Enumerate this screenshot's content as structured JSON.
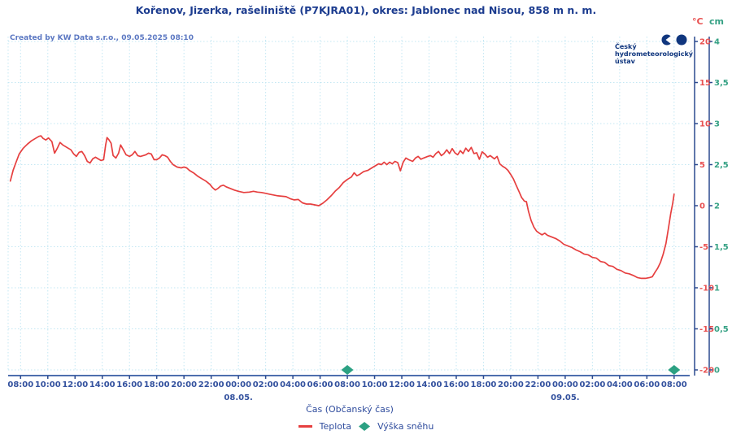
{
  "title": "Kořenov, Jizerka, rašeliniště (P7KJRA01), okres: Jablonec nad Nisou, 858 m n. m.",
  "created_by": "Created by KW Data s.r.o., 09.05.2025 08:10",
  "logo": {
    "lines": [
      "Český",
      "hydrometeorologický",
      "ústav"
    ]
  },
  "units": {
    "temp": "°C",
    "snow": "cm"
  },
  "x_axis": {
    "title": "Čas (Občanský čas)",
    "tick_labels": [
      "08:00",
      "10:00",
      "12:00",
      "14:00",
      "16:00",
      "18:00",
      "20:00",
      "22:00",
      "00:00",
      "02:00",
      "04:00",
      "06:00",
      "08:00",
      "10:00",
      "12:00",
      "14:00",
      "16:00",
      "18:00",
      "20:00",
      "22:00",
      "00:00",
      "02:00",
      "04:00",
      "06:00",
      "08:00"
    ],
    "date_labels": [
      {
        "text": "08.05.",
        "hour": 16
      },
      {
        "text": "09.05.",
        "hour": 40
      }
    ]
  },
  "y_axes": {
    "temp_ticks": [
      "20",
      "15",
      "10",
      "5",
      "0",
      "-5",
      "-10",
      "-15",
      "-20"
    ],
    "snow_ticks": [
      "4",
      "3,5",
      "3",
      "2,5",
      "2",
      "1,5",
      "1",
      "0,5",
      "0"
    ]
  },
  "legend": {
    "temp_label": "Teplota",
    "snow_label": "Výška sněhu"
  },
  "colors": {
    "navy": "#1c3c8f",
    "time_labels": "#33519e",
    "grid": "#c3e7f3",
    "axis_line": "#4e6fae",
    "axis_dark": "#2c4a8f",
    "temp": "#e63f3f",
    "temp_tick": "#e85050",
    "snow": "#2ca183",
    "snow_tick": "#35a184",
    "logo_navy": "#10367e"
  },
  "chart_data": {
    "type": "line",
    "title": "Kořenov, Jizerka, rašeliniště (P7KJRA01), okres: Jablonec nad Nisou, 858 m n. m.",
    "xlabel": "Čas (Občanský čas)",
    "x_unit": "hours since 07.05.2025 08:00, ticks every 2 h",
    "x_range": [
      -0.9,
      48
    ],
    "temp_axis_range": [
      -20,
      20
    ],
    "snow_axis_range": [
      0,
      4
    ],
    "grid": true,
    "legend_position": "bottom",
    "series": [
      {
        "name": "Teplota",
        "unit": "°C",
        "color": "#e63f3f",
        "points": [
          [
            -0.75,
            3.0
          ],
          [
            -0.55,
            4.3
          ],
          [
            -0.35,
            5.2
          ],
          [
            -0.1,
            6.3
          ],
          [
            0.2,
            7.0
          ],
          [
            0.5,
            7.5
          ],
          [
            0.8,
            7.9
          ],
          [
            1.1,
            8.2
          ],
          [
            1.35,
            8.45
          ],
          [
            1.5,
            8.5
          ],
          [
            1.65,
            8.2
          ],
          [
            1.85,
            8.0
          ],
          [
            2.05,
            8.25
          ],
          [
            2.3,
            7.8
          ],
          [
            2.5,
            6.4
          ],
          [
            2.7,
            7.0
          ],
          [
            2.9,
            7.7
          ],
          [
            3.1,
            7.4
          ],
          [
            3.4,
            7.1
          ],
          [
            3.7,
            6.8
          ],
          [
            3.9,
            6.3
          ],
          [
            4.1,
            6.0
          ],
          [
            4.3,
            6.5
          ],
          [
            4.5,
            6.6
          ],
          [
            4.7,
            6.1
          ],
          [
            4.9,
            5.4
          ],
          [
            5.1,
            5.2
          ],
          [
            5.3,
            5.7
          ],
          [
            5.5,
            5.9
          ],
          [
            5.7,
            5.7
          ],
          [
            5.9,
            5.5
          ],
          [
            6.1,
            5.6
          ],
          [
            6.25,
            7.4
          ],
          [
            6.35,
            8.3
          ],
          [
            6.5,
            8.0
          ],
          [
            6.65,
            7.6
          ],
          [
            6.8,
            6.1
          ],
          [
            7.0,
            5.8
          ],
          [
            7.2,
            6.4
          ],
          [
            7.35,
            7.4
          ],
          [
            7.55,
            6.8
          ],
          [
            7.75,
            6.2
          ],
          [
            8.0,
            6.0
          ],
          [
            8.2,
            6.2
          ],
          [
            8.4,
            6.6
          ],
          [
            8.6,
            6.1
          ],
          [
            8.8,
            6.0
          ],
          [
            9.0,
            6.1
          ],
          [
            9.2,
            6.2
          ],
          [
            9.4,
            6.4
          ],
          [
            9.6,
            6.3
          ],
          [
            9.8,
            5.6
          ],
          [
            10.0,
            5.6
          ],
          [
            10.2,
            5.8
          ],
          [
            10.4,
            6.2
          ],
          [
            10.6,
            6.1
          ],
          [
            10.8,
            5.9
          ],
          [
            11.0,
            5.4
          ],
          [
            11.2,
            5.0
          ],
          [
            11.5,
            4.7
          ],
          [
            11.8,
            4.6
          ],
          [
            12.0,
            4.7
          ],
          [
            12.2,
            4.6
          ],
          [
            12.4,
            4.3
          ],
          [
            12.7,
            4.0
          ],
          [
            13.0,
            3.6
          ],
          [
            13.3,
            3.3
          ],
          [
            13.6,
            3.0
          ],
          [
            13.9,
            2.6
          ],
          [
            14.1,
            2.2
          ],
          [
            14.3,
            1.9
          ],
          [
            14.5,
            2.1
          ],
          [
            14.7,
            2.4
          ],
          [
            14.9,
            2.5
          ],
          [
            15.1,
            2.3
          ],
          [
            15.4,
            2.1
          ],
          [
            15.7,
            1.9
          ],
          [
            16.0,
            1.75
          ],
          [
            16.4,
            1.6
          ],
          [
            16.8,
            1.65
          ],
          [
            17.1,
            1.75
          ],
          [
            17.4,
            1.65
          ],
          [
            17.7,
            1.6
          ],
          [
            18.0,
            1.5
          ],
          [
            18.3,
            1.4
          ],
          [
            18.6,
            1.3
          ],
          [
            18.9,
            1.2
          ],
          [
            19.2,
            1.15
          ],
          [
            19.5,
            1.1
          ],
          [
            19.8,
            0.85
          ],
          [
            20.1,
            0.7
          ],
          [
            20.4,
            0.75
          ],
          [
            20.7,
            0.35
          ],
          [
            21.0,
            0.2
          ],
          [
            21.3,
            0.2
          ],
          [
            21.6,
            0.1
          ],
          [
            21.9,
            0.0
          ],
          [
            22.2,
            0.3
          ],
          [
            22.5,
            0.7
          ],
          [
            22.8,
            1.2
          ],
          [
            23.1,
            1.75
          ],
          [
            23.4,
            2.2
          ],
          [
            23.7,
            2.8
          ],
          [
            24.0,
            3.2
          ],
          [
            24.3,
            3.5
          ],
          [
            24.5,
            4.0
          ],
          [
            24.7,
            3.65
          ],
          [
            24.9,
            3.8
          ],
          [
            25.2,
            4.15
          ],
          [
            25.5,
            4.3
          ],
          [
            25.8,
            4.6
          ],
          [
            26.1,
            4.9
          ],
          [
            26.3,
            5.1
          ],
          [
            26.5,
            5.0
          ],
          [
            26.7,
            5.3
          ],
          [
            26.9,
            5.0
          ],
          [
            27.1,
            5.3
          ],
          [
            27.3,
            5.1
          ],
          [
            27.5,
            5.4
          ],
          [
            27.7,
            5.25
          ],
          [
            27.9,
            4.25
          ],
          [
            28.1,
            5.3
          ],
          [
            28.3,
            5.8
          ],
          [
            28.5,
            5.6
          ],
          [
            28.8,
            5.4
          ],
          [
            29.0,
            5.8
          ],
          [
            29.2,
            6.0
          ],
          [
            29.4,
            5.65
          ],
          [
            29.6,
            5.8
          ],
          [
            29.9,
            6.0
          ],
          [
            30.1,
            6.1
          ],
          [
            30.3,
            5.9
          ],
          [
            30.5,
            6.35
          ],
          [
            30.7,
            6.6
          ],
          [
            30.9,
            6.1
          ],
          [
            31.1,
            6.35
          ],
          [
            31.3,
            6.8
          ],
          [
            31.5,
            6.35
          ],
          [
            31.7,
            6.95
          ],
          [
            31.9,
            6.45
          ],
          [
            32.1,
            6.2
          ],
          [
            32.3,
            6.7
          ],
          [
            32.5,
            6.35
          ],
          [
            32.7,
            7.0
          ],
          [
            32.9,
            6.6
          ],
          [
            33.1,
            7.1
          ],
          [
            33.3,
            6.35
          ],
          [
            33.5,
            6.45
          ],
          [
            33.7,
            5.65
          ],
          [
            33.9,
            6.55
          ],
          [
            34.1,
            6.3
          ],
          [
            34.3,
            5.9
          ],
          [
            34.5,
            6.1
          ],
          [
            34.8,
            5.7
          ],
          [
            35.0,
            6.0
          ],
          [
            35.2,
            5.1
          ],
          [
            35.4,
            4.8
          ],
          [
            35.6,
            4.6
          ],
          [
            35.8,
            4.3
          ],
          [
            36.0,
            3.8
          ],
          [
            36.2,
            3.25
          ],
          [
            36.4,
            2.5
          ],
          [
            36.6,
            1.75
          ],
          [
            36.8,
            1.0
          ],
          [
            37.0,
            0.55
          ],
          [
            37.15,
            0.5
          ],
          [
            37.3,
            -0.65
          ],
          [
            37.5,
            -1.8
          ],
          [
            37.7,
            -2.6
          ],
          [
            37.9,
            -3.1
          ],
          [
            38.1,
            -3.35
          ],
          [
            38.3,
            -3.55
          ],
          [
            38.5,
            -3.35
          ],
          [
            38.7,
            -3.6
          ],
          [
            39.0,
            -3.8
          ],
          [
            39.3,
            -4.0
          ],
          [
            39.6,
            -4.3
          ],
          [
            39.9,
            -4.7
          ],
          [
            40.2,
            -4.9
          ],
          [
            40.5,
            -5.1
          ],
          [
            40.8,
            -5.4
          ],
          [
            41.1,
            -5.6
          ],
          [
            41.4,
            -5.9
          ],
          [
            41.7,
            -6.0
          ],
          [
            42.0,
            -6.3
          ],
          [
            42.3,
            -6.4
          ],
          [
            42.6,
            -6.8
          ],
          [
            42.9,
            -6.9
          ],
          [
            43.2,
            -7.3
          ],
          [
            43.5,
            -7.4
          ],
          [
            43.8,
            -7.75
          ],
          [
            44.1,
            -7.9
          ],
          [
            44.4,
            -8.2
          ],
          [
            44.7,
            -8.3
          ],
          [
            45.0,
            -8.5
          ],
          [
            45.3,
            -8.75
          ],
          [
            45.6,
            -8.85
          ],
          [
            45.9,
            -8.85
          ],
          [
            46.2,
            -8.75
          ],
          [
            46.4,
            -8.65
          ],
          [
            46.6,
            -8.1
          ],
          [
            46.8,
            -7.6
          ],
          [
            47.0,
            -6.9
          ],
          [
            47.2,
            -5.9
          ],
          [
            47.4,
            -4.6
          ],
          [
            47.6,
            -2.6
          ],
          [
            47.75,
            -1.0
          ],
          [
            47.9,
            0.3
          ],
          [
            48.0,
            1.4
          ]
        ]
      },
      {
        "name": "Výška sněhu",
        "unit": "cm",
        "color": "#2ca183",
        "points": [
          [
            24,
            0
          ],
          [
            48,
            0
          ]
        ]
      }
    ]
  }
}
